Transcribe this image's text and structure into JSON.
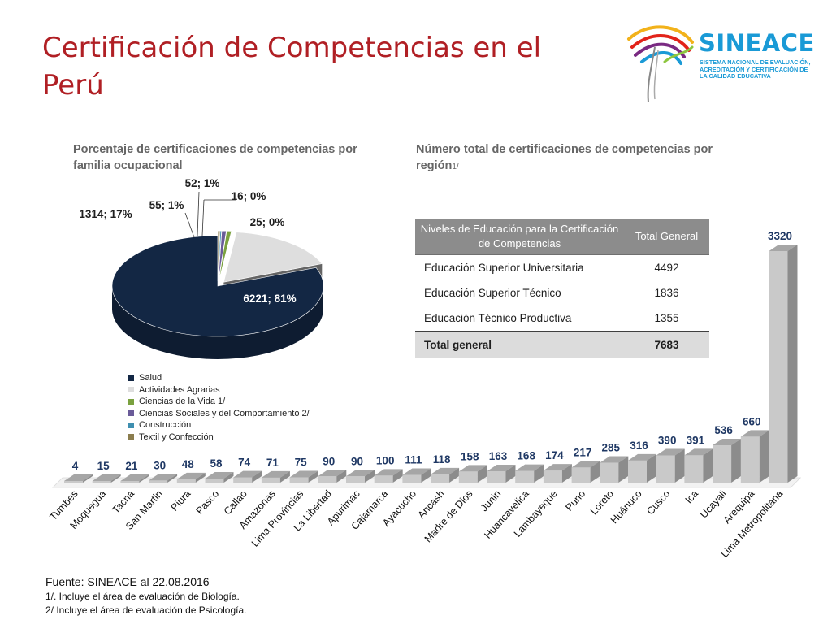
{
  "slide": {
    "title": "Certificación de Competencias en el Perú"
  },
  "logo": {
    "name": "SINEACE",
    "subtitle": "SISTEMA NACIONAL DE EVALUACIÓN, ACREDITACIÓN Y CERTIFICACIÓN DE LA CALIDAD EDUCATIVA",
    "colors": [
      "#f2b21a",
      "#e2231a",
      "#7a2a82",
      "#1a9ad6",
      "#8dc63f"
    ]
  },
  "pie_caption": "Porcentaje de certificaciones de competencias por familia ocupacional",
  "bar_caption": {
    "text": "Número total de certificaciones de competencias por región",
    "superscript": "1/"
  },
  "table": {
    "headers": [
      "Niveles de Educación para la Certificación de Competencias",
      "Total General"
    ],
    "rows": [
      {
        "label": "Educación Superior Universitaria",
        "value": "4492"
      },
      {
        "label": "Educación Superior Técnico",
        "value": "1836"
      },
      {
        "label": "Educación Técnico Productiva",
        "value": "1355"
      }
    ],
    "total": {
      "label": "Total general",
      "value": "7683"
    }
  },
  "chart_data": [
    {
      "type": "pie",
      "title": "Porcentaje de certificaciones de competencias por familia ocupacional",
      "slices": [
        {
          "name": "Salud",
          "value": 6221,
          "percent": 81,
          "label": "6221; 81%",
          "color": "#132744"
        },
        {
          "name": "Actividades Agrarias",
          "value": 1314,
          "percent": 17,
          "label": "1314; 17%",
          "color": "#dedede"
        },
        {
          "name": "Ciencias de la Vida 1/",
          "value": 55,
          "percent": 1,
          "label": "55; 1%",
          "color": "#7aa13f"
        },
        {
          "name": "Ciencias Sociales y del Comportamiento 2/",
          "value": 52,
          "percent": 1,
          "label": "52; 1%",
          "color": "#6a5b99"
        },
        {
          "name": "Construcción",
          "value": 16,
          "percent": 0,
          "label": "16; 0%",
          "color": "#3f8fb0"
        },
        {
          "name": "Textil y Confección",
          "value": 25,
          "percent": 0,
          "label": "25; 0%",
          "color": "#8b7d4e"
        }
      ],
      "legend_position": "bottom"
    },
    {
      "type": "bar",
      "title": "Número total de certificaciones de competencias por región",
      "categories": [
        "Tumbes",
        "Moquegua",
        "Tacna",
        "San Martin",
        "Piura",
        "Pasco",
        "Callao",
        "Amazonas",
        "Lima Provincias",
        "La Libertad",
        "Apurimac",
        "Cajamarca",
        "Ayacucho",
        "Ancash",
        "Madre de Dios",
        "Junin",
        "Huancavelica",
        "Lambayeque",
        "Puno",
        "Loreto",
        "Huánuco",
        "Cusco",
        "Ica",
        "Ucayali",
        "Arequipa",
        "Lima Metropolitana"
      ],
      "values": [
        4,
        15,
        21,
        30,
        48,
        58,
        74,
        71,
        75,
        90,
        90,
        100,
        111,
        118,
        158,
        163,
        168,
        174,
        217,
        285,
        316,
        390,
        391,
        536,
        660,
        3320
      ],
      "ylim": [
        0,
        3320
      ],
      "grid": false,
      "color": "#c9c9c9",
      "label_color": "#1f3864"
    }
  ],
  "notes": {
    "source": "Fuente: SINEACE al  22.08.2016",
    "note1": "1/. Incluye  el área de evaluación de Biología.",
    "note2": "2/ Incluye  el área  de evaluación de Psicología."
  }
}
